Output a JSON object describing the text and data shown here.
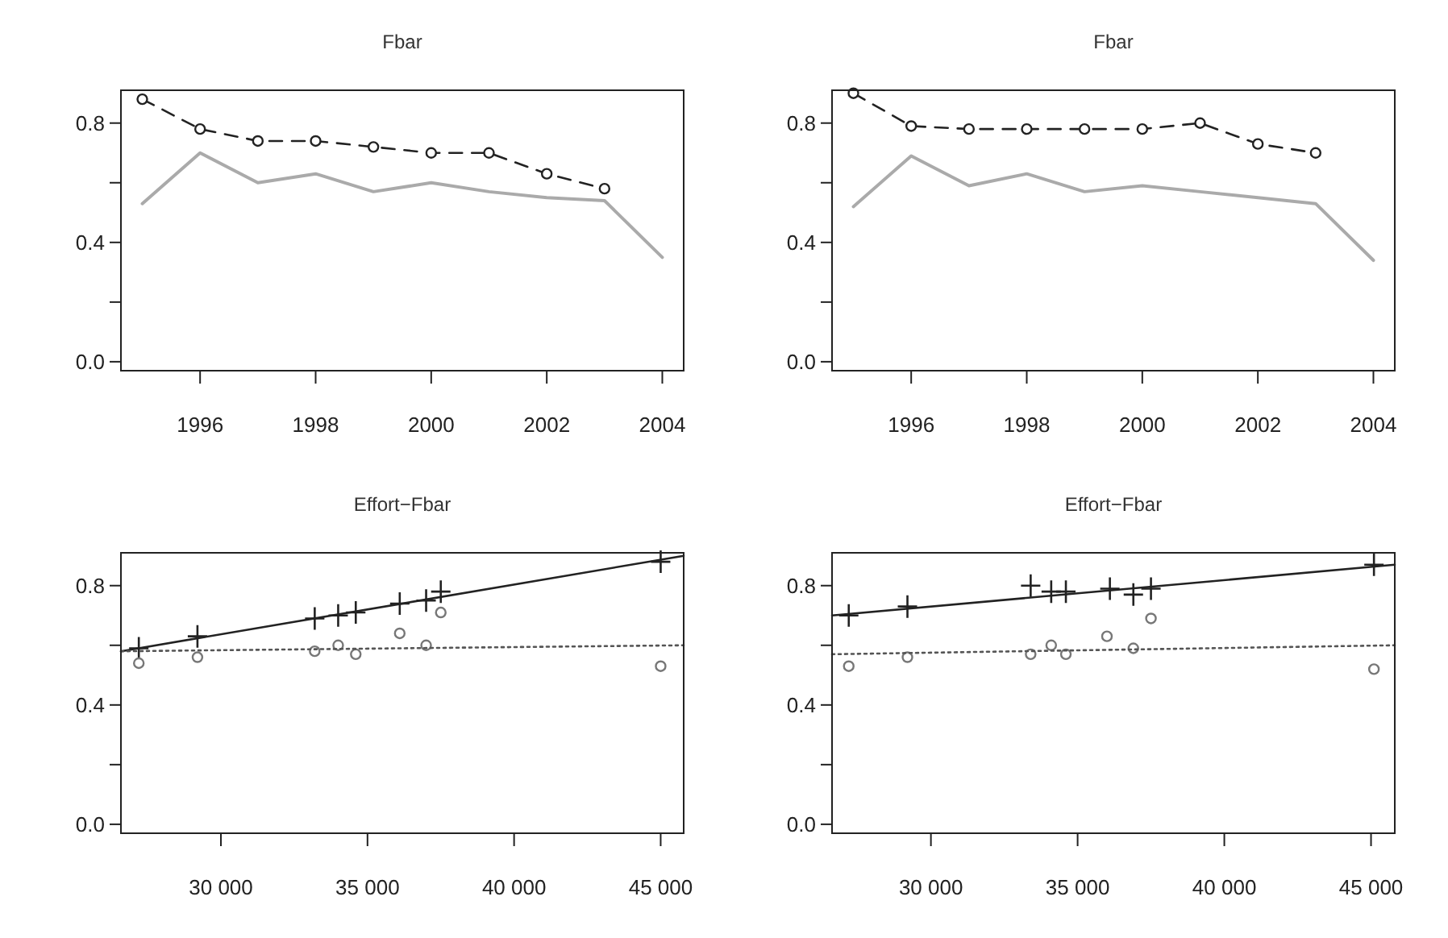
{
  "chart_data": [
    {
      "type": "line",
      "title": "Fbar",
      "xlim": [
        1994.63,
        2004.37
      ],
      "ylim": [
        -0.03,
        0.91
      ],
      "xticks": [
        1996,
        1998,
        2000,
        2002,
        2004
      ],
      "yticks": [
        {
          "value": 0,
          "label": "0.0"
        },
        {
          "value": 0.2,
          "label": null
        },
        {
          "value": 0.4,
          "label": "0.4"
        },
        {
          "value": 0.6,
          "label": null
        },
        {
          "value": 0.8,
          "label": "0.8"
        }
      ],
      "grid": false,
      "x": [
        1995,
        1996,
        1997,
        1998,
        1999,
        2000,
        2001,
        2002,
        2003,
        2004
      ],
      "series": [
        {
          "color": "#222222",
          "marker": "circle",
          "line_style": "dashed",
          "values": [
            0.88,
            0.78,
            0.74,
            0.74,
            0.72,
            0.7,
            0.7,
            0.63,
            0.58,
            null
          ]
        },
        {
          "color": "#aaaaaa",
          "marker": "none",
          "line_style": "solid",
          "values": [
            0.53,
            0.7,
            0.6,
            0.63,
            0.57,
            0.6,
            0.57,
            0.55,
            0.54,
            0.35
          ]
        }
      ]
    },
    {
      "type": "line",
      "title": "Fbar",
      "xlim": [
        1994.63,
        2004.37
      ],
      "ylim": [
        -0.03,
        0.91
      ],
      "xticks": [
        1996,
        1998,
        2000,
        2002,
        2004
      ],
      "yticks": [
        {
          "value": 0,
          "label": "0.0"
        },
        {
          "value": 0.2,
          "label": null
        },
        {
          "value": 0.4,
          "label": "0.4"
        },
        {
          "value": 0.6,
          "label": null
        },
        {
          "value": 0.8,
          "label": "0.8"
        }
      ],
      "grid": false,
      "x": [
        1995,
        1996,
        1997,
        1998,
        1999,
        2000,
        2001,
        2002,
        2003,
        2004
      ],
      "series": [
        {
          "color": "#222222",
          "marker": "circle",
          "line_style": "dashed",
          "values": [
            0.9,
            0.79,
            0.78,
            0.78,
            0.78,
            0.78,
            0.8,
            0.73,
            0.7,
            null
          ]
        },
        {
          "color": "#aaaaaa",
          "marker": "none",
          "line_style": "solid",
          "values": [
            0.52,
            0.69,
            0.59,
            0.63,
            0.57,
            0.59,
            0.57,
            0.55,
            0.53,
            0.34
          ]
        }
      ]
    },
    {
      "type": "scatter",
      "title": "Effort−Fbar",
      "xlim": [
        26590,
        45785
      ],
      "ylim": [
        -0.03,
        0.91
      ],
      "xticks": [
        {
          "value": 30000,
          "label": "30 000"
        },
        {
          "value": 35000,
          "label": "35 000"
        },
        {
          "value": 40000,
          "label": "40 000"
        },
        {
          "value": 45000,
          "label": "45 000"
        }
      ],
      "yticks": [
        {
          "value": 0,
          "label": "0.0"
        },
        {
          "value": 0.2,
          "label": null
        },
        {
          "value": 0.4,
          "label": "0.4"
        },
        {
          "value": 0.6,
          "label": null
        },
        {
          "value": 0.8,
          "label": "0.8"
        }
      ],
      "grid": false,
      "series": [
        {
          "color": "#222222",
          "marker": "cross",
          "x": [
            27200,
            29200,
            33200,
            34000,
            34600,
            36100,
            37000,
            37500,
            45000
          ],
          "values": [
            0.59,
            0.63,
            0.69,
            0.7,
            0.71,
            0.74,
            0.75,
            0.78,
            0.88
          ]
        },
        {
          "color": "#777777",
          "marker": "circle",
          "x": [
            27200,
            29200,
            33200,
            34000,
            34600,
            36100,
            37000,
            37500,
            45000
          ],
          "values": [
            0.54,
            0.56,
            0.58,
            0.6,
            0.57,
            0.64,
            0.6,
            0.71,
            0.53
          ]
        },
        {
          "type": "line",
          "color": "#222222",
          "marker": "none",
          "line_style": "solid",
          "x": [
            26590,
            45785
          ],
          "values": [
            0.58,
            0.9
          ]
        },
        {
          "type": "line",
          "color": "#555555",
          "marker": "none",
          "line_style": "dotted",
          "x": [
            26590,
            45785
          ],
          "values": [
            0.58,
            0.6
          ]
        }
      ]
    },
    {
      "type": "scatter",
      "title": "Effort−Fbar",
      "xlim": [
        26630,
        45810
      ],
      "ylim": [
        -0.03,
        0.91
      ],
      "xticks": [
        {
          "value": 30000,
          "label": "30 000"
        },
        {
          "value": 35000,
          "label": "35 000"
        },
        {
          "value": 40000,
          "label": "40 000"
        },
        {
          "value": 45000,
          "label": "45 000"
        }
      ],
      "yticks": [
        {
          "value": 0,
          "label": "0.0"
        },
        {
          "value": 0.2,
          "label": null
        },
        {
          "value": 0.4,
          "label": "0.4"
        },
        {
          "value": 0.6,
          "label": null
        },
        {
          "value": 0.8,
          "label": "0.8"
        }
      ],
      "grid": false,
      "series": [
        {
          "color": "#222222",
          "marker": "cross",
          "x": [
            27200,
            29200,
            33400,
            34100,
            34600,
            36100,
            36900,
            37500,
            45100
          ],
          "values": [
            0.7,
            0.73,
            0.8,
            0.78,
            0.78,
            0.79,
            0.77,
            0.79,
            0.87
          ]
        },
        {
          "color": "#777777",
          "marker": "circle",
          "x": [
            27200,
            29200,
            33400,
            34100,
            34600,
            36000,
            36900,
            37500,
            45100
          ],
          "values": [
            0.53,
            0.56,
            0.57,
            0.6,
            0.57,
            0.63,
            0.59,
            0.69,
            0.52
          ]
        },
        {
          "type": "line",
          "color": "#222222",
          "marker": "none",
          "line_style": "solid",
          "x": [
            26630,
            45810
          ],
          "values": [
            0.7,
            0.87
          ]
        },
        {
          "type": "line",
          "color": "#555555",
          "marker": "none",
          "line_style": "dotted",
          "x": [
            26630,
            45810
          ],
          "values": [
            0.57,
            0.6
          ]
        }
      ]
    }
  ]
}
